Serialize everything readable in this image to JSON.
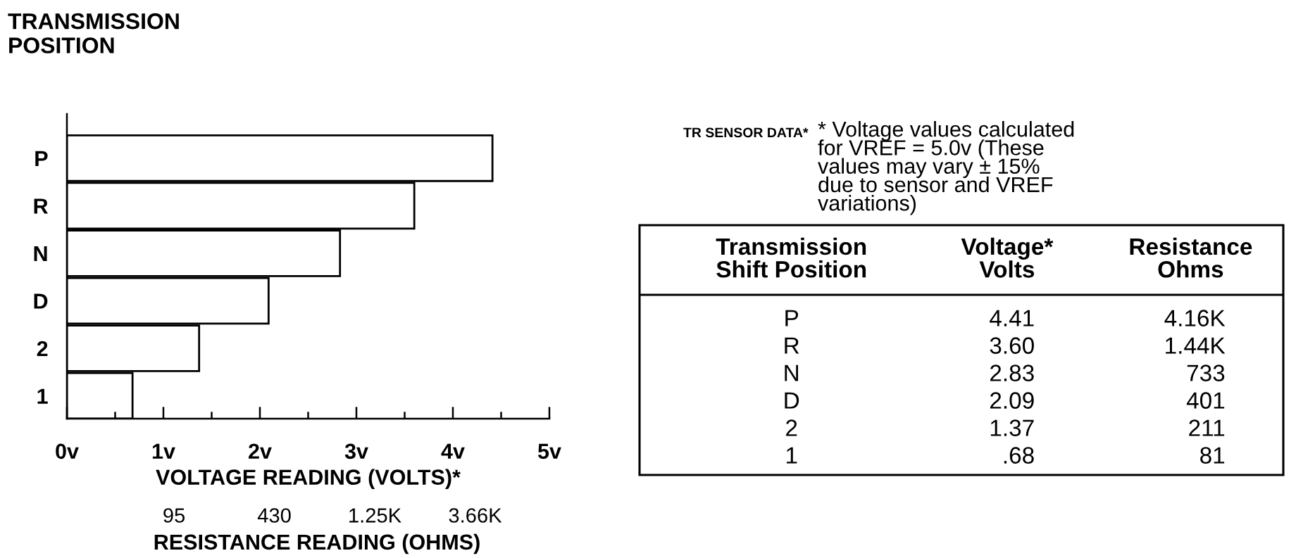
{
  "chart_data": [
    {
      "type": "bar",
      "orientation": "horizontal",
      "ylabel": "TRANSMISSION\nPOSITION",
      "xlabel": "VOLTAGE READING (VOLTS)*",
      "categories": [
        "P",
        "R",
        "N",
        "D",
        "2",
        "1"
      ],
      "values": [
        4.41,
        3.6,
        2.83,
        2.09,
        1.37,
        0.68
      ],
      "color": "#ffffff",
      "xlim": [
        0,
        5
      ],
      "xticks": [
        {
          "value": 0,
          "label": "0v"
        },
        {
          "value": 0.5,
          "label": null
        },
        {
          "value": 1,
          "label": "1v"
        },
        {
          "value": 1.5,
          "label": null
        },
        {
          "value": 2,
          "label": "2v"
        },
        {
          "value": 2.5,
          "label": null
        },
        {
          "value": 3,
          "label": "3v"
        },
        {
          "value": 3.5,
          "label": null
        },
        {
          "value": 4,
          "label": "4v"
        },
        {
          "value": 4.5,
          "label": null
        },
        {
          "value": 5,
          "label": "5v"
        }
      ],
      "annotations": [
        "95",
        "430",
        "1.25K",
        "3.66K",
        "RESISTANCE READING (OHMS)"
      ]
    },
    {
      "type": "other",
      "title": "TR SENSOR DATA*",
      "annotations": [
        "* Voltage values calculated\nfor VREF = 5.0v (These\nvalues may vary ± 15%\ndue to sensor and VREF\nvariations)"
      ],
      "ylabel": "Transmission\nShift Position",
      "categories": [
        "P",
        "R",
        "N",
        "D",
        "2",
        "1"
      ],
      "series": [
        {
          "name": "Voltage*\nVolts",
          "values": [
            4.41,
            3.6,
            2.83,
            2.09,
            1.37,
            0.68
          ],
          "value_labels": [
            "4.41",
            "3.60",
            "2.83",
            "2.09",
            "1.37",
            ".68"
          ]
        },
        {
          "name": "Resistance\nOhms",
          "values": [
            4160,
            1440,
            733,
            401,
            211,
            81
          ],
          "value_labels": [
            "4.16K",
            "1.44K",
            "733",
            "401",
            "211",
            "81"
          ]
        }
      ]
    }
  ]
}
